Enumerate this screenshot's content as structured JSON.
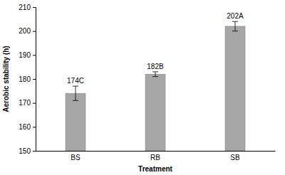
{
  "chart_data": {
    "type": "bar",
    "x_label": "Treatment",
    "y_label": "Aerobic stability (h)",
    "categories": [
      "BS",
      "RB",
      "SB"
    ],
    "values": [
      174,
      182,
      202
    ],
    "errors": [
      3,
      1,
      2
    ],
    "value_labels": [
      "174C",
      "182B",
      "202A"
    ],
    "data_labels": true,
    "color": "#a6a6a6",
    "ylim": [
      150,
      210
    ],
    "yticks": [
      150,
      160,
      170,
      180,
      190,
      200,
      210
    ],
    "grid": false
  }
}
